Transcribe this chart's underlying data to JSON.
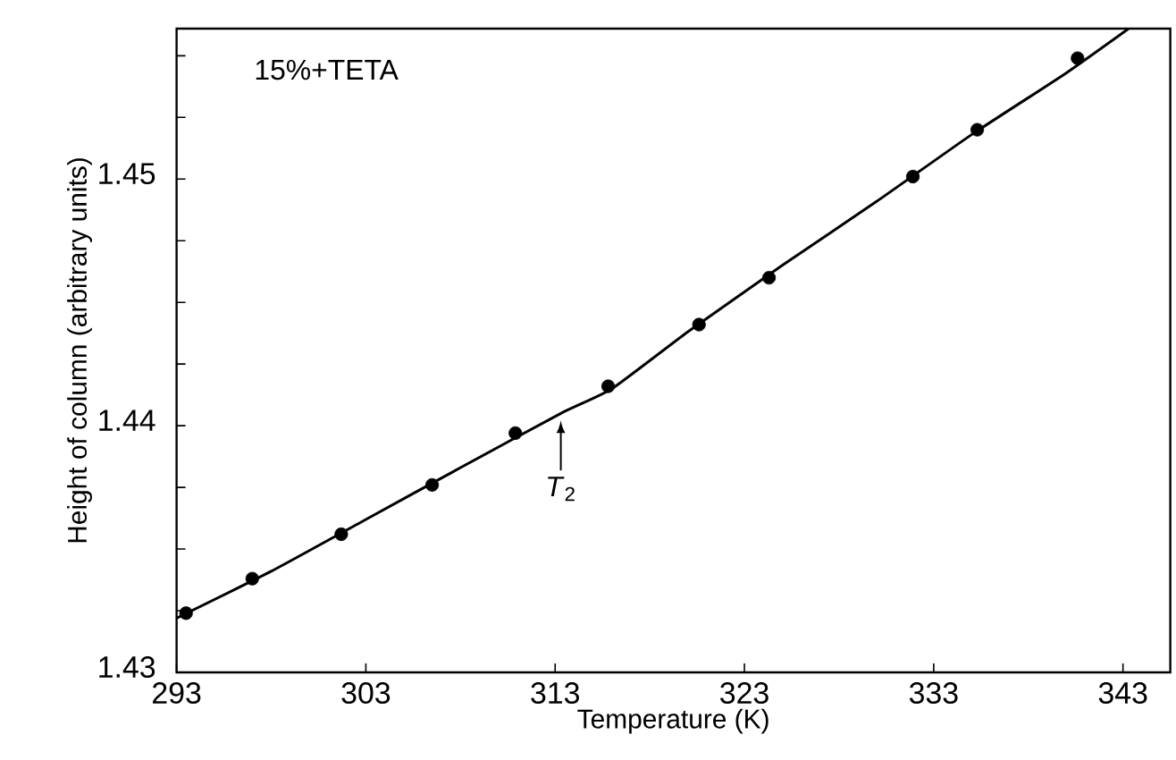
{
  "chart_data": {
    "type": "scatter",
    "xlabel": "Temperature (K)",
    "ylabel": "Height of column (arbitrary units)",
    "annotations": [
      "15%+TETA",
      {
        "text": "*T*$_{2}$",
        "x": 313.3,
        "y": 1.4405
      }
    ],
    "series": [
      {
        "color": "#000000",
        "marker": "circle",
        "x": [
          293.5,
          297,
          301.7,
          306.5,
          310.9,
          315.8,
          320.6,
          324.3,
          331.9,
          335.3,
          340.6
        ],
        "values": [
          1.4324,
          1.4338,
          1.4356,
          1.4376,
          1.4397,
          1.4416,
          1.4441,
          1.446,
          1.4501,
          1.452,
          1.4549
        ]
      },
      {
        "type": "line",
        "color": "#000000",
        "marker": "none",
        "x": [
          293,
          298,
          303,
          308,
          313.3,
          316,
          320,
          325,
          330,
          335,
          340,
          343.3
        ],
        "values": [
          1.4322,
          1.4341,
          1.4362,
          1.4383,
          1.4405,
          1.4415,
          1.4438,
          1.4465,
          1.4491,
          1.4518,
          1.4543,
          1.4561
        ]
      }
    ],
    "xlim": [
      293,
      345.5
    ],
    "ylim": [
      1.43,
      1.4561
    ],
    "xticks": [
      293,
      303,
      313,
      323,
      333,
      343
    ],
    "yticks": [
      1.43,
      {
        "value": 1.4325,
        "label": null
      },
      {
        "value": 1.435,
        "label": null
      },
      {
        "value": 1.4375,
        "label": null
      },
      1.44,
      {
        "value": 1.4425,
        "label": null
      },
      {
        "value": 1.445,
        "label": null
      },
      {
        "value": 1.4475,
        "label": null
      },
      1.45,
      {
        "value": 1.4525,
        "label": null
      },
      {
        "value": 1.455,
        "label": null
      }
    ]
  }
}
